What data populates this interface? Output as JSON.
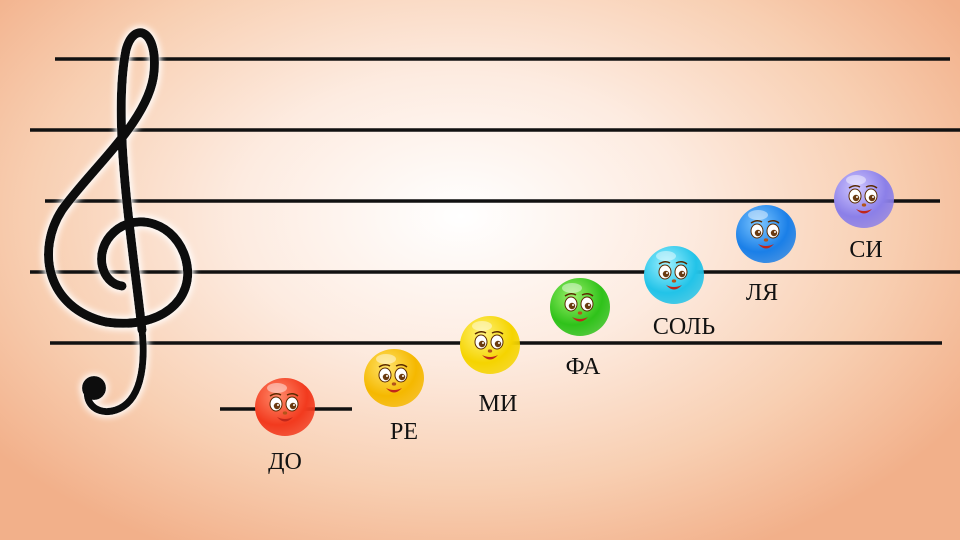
{
  "notes": [
    {
      "label": "ДО",
      "color": "#f23a1e",
      "light": "#ff8a6a"
    },
    {
      "label": "РЕ",
      "color": "#f5b800",
      "light": "#ffe36a"
    },
    {
      "label": "МИ",
      "color": "#f5d400",
      "light": "#fff27a"
    },
    {
      "label": "ФА",
      "color": "#2fc21a",
      "light": "#9cf06a"
    },
    {
      "label": "СОЛЬ",
      "color": "#22c3e8",
      "light": "#9cf0ff"
    },
    {
      "label": "ЛЯ",
      "color": "#1a7fe8",
      "light": "#7cc6ff"
    },
    {
      "label": "СИ",
      "color": "#8b7fe8",
      "light": "#cfc6ff"
    }
  ]
}
